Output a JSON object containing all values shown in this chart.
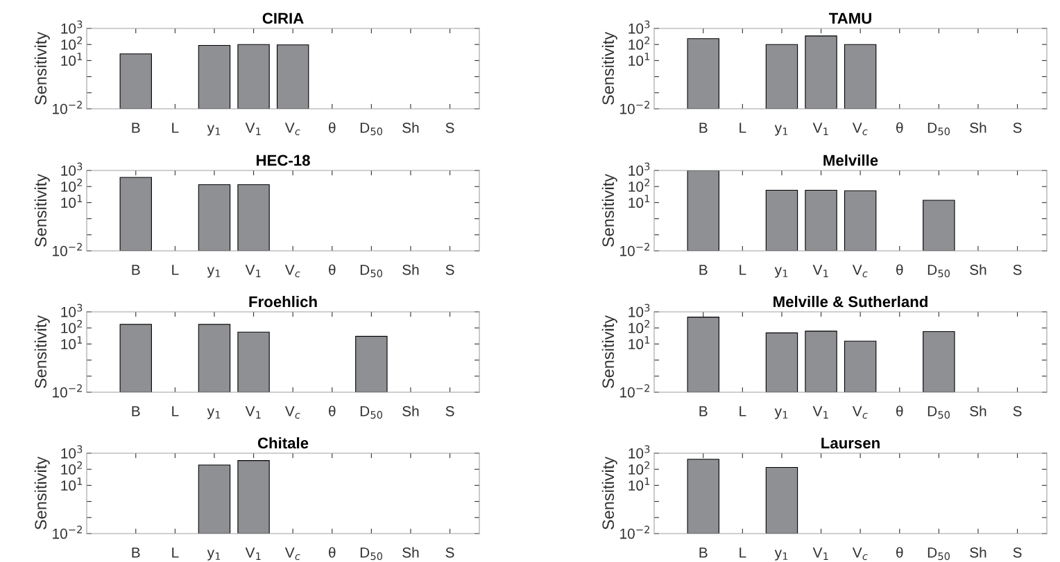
{
  "chart_data": [
    {
      "type": "bar",
      "title": "CIRIA",
      "ylabel": "Sensitivity",
      "log": true,
      "color": "#8f9094",
      "ylim": [
        0.01,
        1000
      ],
      "yticks": [
        {
          "value": 0.01,
          "label": "10$^{−2}$"
        },
        {
          "value": 0.1,
          "label": null
        },
        {
          "value": 1,
          "label": null
        },
        {
          "value": 10,
          "label": "10$^{1}$"
        },
        {
          "value": 100,
          "label": "10$^{2}$"
        },
        {
          "value": 1000,
          "label": "10$^{3}$"
        }
      ],
      "categories": [
        "B",
        "L",
        "y$_{1}$",
        "V$_{1}$",
        "V$_{c}$",
        "θ",
        "D$_{50}$",
        "Sh",
        "S"
      ],
      "values": [
        26,
        null,
        88,
        100,
        95,
        null,
        null,
        null,
        null
      ]
    },
    {
      "type": "bar",
      "title": "TAMU",
      "ylabel": "Sensitivity",
      "log": true,
      "color": "#8f9094",
      "ylim": [
        0.01,
        1000
      ],
      "yticks": [
        {
          "value": 0.01,
          "label": "10$^{−2}$"
        },
        {
          "value": 0.1,
          "label": null
        },
        {
          "value": 1,
          "label": null
        },
        {
          "value": 10,
          "label": "10$^{1}$"
        },
        {
          "value": 100,
          "label": "10$^{2}$"
        },
        {
          "value": 1000,
          "label": "10$^{3}$"
        }
      ],
      "categories": [
        "B",
        "L",
        "y$_{1}$",
        "V$_{1}$",
        "V$_{c}$",
        "θ",
        "D$_{50}$",
        "Sh",
        "S"
      ],
      "values": [
        230,
        null,
        100,
        340,
        100,
        null,
        null,
        null,
        null
      ]
    },
    {
      "type": "bar",
      "title": "HEC-18",
      "ylabel": "Sensitivity",
      "log": true,
      "color": "#8f9094",
      "ylim": [
        0.01,
        1000
      ],
      "yticks": [
        {
          "value": 0.01,
          "label": "10$^{−2}$"
        },
        {
          "value": 0.1,
          "label": null
        },
        {
          "value": 1,
          "label": null
        },
        {
          "value": 10,
          "label": "10$^{1}$"
        },
        {
          "value": 100,
          "label": "10$^{2}$"
        },
        {
          "value": 1000,
          "label": "10$^{3}$"
        }
      ],
      "categories": [
        "B",
        "L",
        "y$_{1}$",
        "V$_{1}$",
        "V$_{c}$",
        "θ",
        "D$_{50}$",
        "Sh",
        "S"
      ],
      "values": [
        370,
        null,
        130,
        130,
        null,
        null,
        null,
        null,
        null
      ]
    },
    {
      "type": "bar",
      "title": "Melville",
      "ylabel": "Sensitivity",
      "log": true,
      "color": "#8f9094",
      "ylim": [
        0.01,
        1000
      ],
      "yticks": [
        {
          "value": 0.01,
          "label": "10$^{−2}$"
        },
        {
          "value": 0.1,
          "label": null
        },
        {
          "value": 1,
          "label": null
        },
        {
          "value": 10,
          "label": "10$^{1}$"
        },
        {
          "value": 100,
          "label": "10$^{2}$"
        },
        {
          "value": 1000,
          "label": "10$^{3}$"
        }
      ],
      "categories": [
        "B",
        "L",
        "y$_{1}$",
        "V$_{1}$",
        "V$_{c}$",
        "θ",
        "D$_{50}$",
        "Sh",
        "S"
      ],
      "values": [
        1000,
        null,
        59,
        59,
        55,
        null,
        14,
        null,
        null
      ]
    },
    {
      "type": "bar",
      "title": "Froehlich",
      "ylabel": "Sensitivity",
      "log": true,
      "color": "#8f9094",
      "ylim": [
        0.01,
        1000
      ],
      "yticks": [
        {
          "value": 0.01,
          "label": "10$^{−2}$"
        },
        {
          "value": 0.1,
          "label": null
        },
        {
          "value": 1,
          "label": null
        },
        {
          "value": 10,
          "label": "10$^{1}$"
        },
        {
          "value": 100,
          "label": "10$^{2}$"
        },
        {
          "value": 1000,
          "label": "10$^{3}$"
        }
      ],
      "categories": [
        "B",
        "L",
        "y$_{1}$",
        "V$_{1}$",
        "V$_{c}$",
        "θ",
        "D$_{50}$",
        "Sh",
        "S"
      ],
      "values": [
        165,
        null,
        165,
        55,
        null,
        null,
        30,
        null,
        null
      ]
    },
    {
      "type": "bar",
      "title": "Melville & Sutherland",
      "ylabel": "Sensitivity",
      "log": true,
      "color": "#8f9094",
      "ylim": [
        0.01,
        1000
      ],
      "yticks": [
        {
          "value": 0.01,
          "label": "10$^{−2}$"
        },
        {
          "value": 0.1,
          "label": null
        },
        {
          "value": 1,
          "label": null
        },
        {
          "value": 10,
          "label": "10$^{1}$"
        },
        {
          "value": 100,
          "label": "10$^{2}$"
        },
        {
          "value": 1000,
          "label": "10$^{3}$"
        }
      ],
      "categories": [
        "B",
        "L",
        "y$_{1}$",
        "V$_{1}$",
        "V$_{c}$",
        "θ",
        "D$_{50}$",
        "Sh",
        "S"
      ],
      "values": [
        470,
        null,
        49,
        63,
        15,
        null,
        59,
        null,
        null
      ]
    },
    {
      "type": "bar",
      "title": "Chitale",
      "ylabel": "Sensitivity",
      "log": true,
      "color": "#8f9094",
      "ylim": [
        0.01,
        1000
      ],
      "yticks": [
        {
          "value": 0.01,
          "label": "10$^{−2}$"
        },
        {
          "value": 0.1,
          "label": null
        },
        {
          "value": 1,
          "label": null
        },
        {
          "value": 10,
          "label": "10$^{1}$"
        },
        {
          "value": 100,
          "label": "10$^{2}$"
        },
        {
          "value": 1000,
          "label": "10$^{3}$"
        }
      ],
      "categories": [
        "B",
        "L",
        "y$_{1}$",
        "V$_{1}$",
        "V$_{c}$",
        "θ",
        "D$_{50}$",
        "Sh",
        "S"
      ],
      "values": [
        null,
        null,
        185,
        350,
        null,
        null,
        null,
        null,
        null
      ]
    },
    {
      "type": "bar",
      "title": "Laursen",
      "ylabel": "Sensitivity",
      "log": true,
      "color": "#8f9094",
      "ylim": [
        0.01,
        1000
      ],
      "yticks": [
        {
          "value": 0.01,
          "label": "10$^{−2}$"
        },
        {
          "value": 0.1,
          "label": null
        },
        {
          "value": 1,
          "label": null
        },
        {
          "value": 10,
          "label": "10$^{1}$"
        },
        {
          "value": 100,
          "label": "10$^{2}$"
        },
        {
          "value": 1000,
          "label": "10$^{3}$"
        }
      ],
      "categories": [
        "B",
        "L",
        "y$_{1}$",
        "V$_{1}$",
        "V$_{c}$",
        "θ",
        "D$_{50}$",
        "Sh",
        "S"
      ],
      "values": [
        420,
        null,
        130,
        null,
        null,
        null,
        null,
        null,
        null
      ]
    }
  ]
}
